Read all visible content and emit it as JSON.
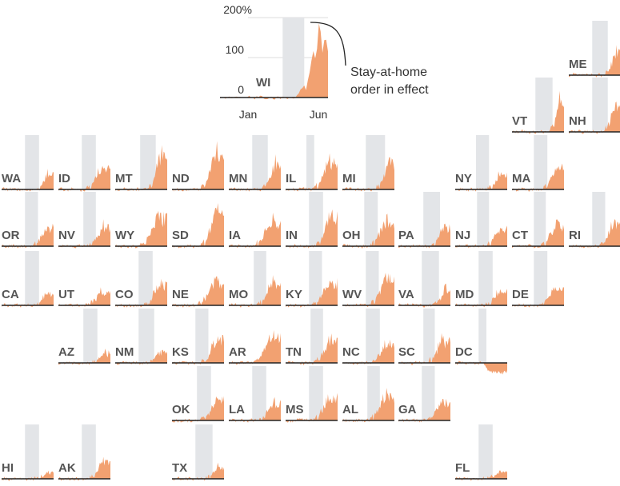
{
  "chart_data": {
    "type": "area",
    "legend_example": {
      "state": "WI",
      "y_ticks": [
        "200%",
        "100",
        "0"
      ],
      "x_ticks": [
        "Jan",
        "Jun"
      ],
      "annotation": [
        "Stay-at-home",
        "order in effect"
      ]
    },
    "x_range": [
      "Jan",
      "Jun"
    ],
    "ylim": [
      -40,
      200
    ],
    "colors": {
      "area": "#f2a171",
      "stay_at_home": "#e3e5e8",
      "baseline": "#222222",
      "label": "#555555"
    },
    "states": [
      {
        "abbr": "WI",
        "shade": [
          0.58,
          0.78
        ],
        "rise": 0.78,
        "peak": 185,
        "neg": false
      },
      {
        "abbr": "ME",
        "shade": [
          0.45,
          0.75
        ],
        "rise": 0.75,
        "peak": 70,
        "neg": false
      },
      {
        "abbr": "VT",
        "shade": [
          0.45,
          0.78
        ],
        "rise": 0.78,
        "peak": 95,
        "neg": false
      },
      {
        "abbr": "NH",
        "shade": [
          0.45,
          0.75
        ],
        "rise": 0.72,
        "peak": 75,
        "neg": false
      },
      {
        "abbr": "WA",
        "shade": [
          0.45,
          0.72
        ],
        "rise": 0.72,
        "peak": 45,
        "neg": false
      },
      {
        "abbr": "ID",
        "shade": [
          0.45,
          0.72
        ],
        "rise": 0.6,
        "peak": 65,
        "neg": false
      },
      {
        "abbr": "MT",
        "shade": [
          0.48,
          0.78
        ],
        "rise": 0.68,
        "peak": 95,
        "neg": false
      },
      {
        "abbr": "ND",
        "shade": null,
        "rise": 0.62,
        "peak": 110,
        "neg": false
      },
      {
        "abbr": "MN",
        "shade": [
          0.45,
          0.75
        ],
        "rise": 0.7,
        "peak": 80,
        "neg": false
      },
      {
        "abbr": "IL",
        "shade": [
          0.4,
          0.55
        ],
        "rise": 0.6,
        "peak": 80,
        "neg": false
      },
      {
        "abbr": "MI",
        "shade": [
          0.45,
          0.82
        ],
        "rise": 0.7,
        "peak": 80,
        "neg": false
      },
      {
        "abbr": "NY",
        "shade": [
          0.4,
          0.65
        ],
        "rise": 0.68,
        "peak": 50,
        "neg": false
      },
      {
        "abbr": "MA",
        "shade": [
          0.42,
          0.68
        ],
        "rise": 0.66,
        "peak": 70,
        "neg": false
      },
      {
        "abbr": "OR",
        "shade": [
          0.45,
          0.7
        ],
        "rise": 0.66,
        "peak": 55,
        "neg": false
      },
      {
        "abbr": "NV",
        "shade": [
          0.48,
          0.72
        ],
        "rise": 0.62,
        "peak": 60,
        "neg": false
      },
      {
        "abbr": "WY",
        "shade": null,
        "rise": 0.55,
        "peak": 85,
        "neg": false
      },
      {
        "abbr": "SD",
        "shade": null,
        "rise": 0.62,
        "peak": 95,
        "neg": false
      },
      {
        "abbr": "IA",
        "shade": null,
        "rise": 0.55,
        "peak": 75,
        "neg": false
      },
      {
        "abbr": "IN",
        "shade": [
          0.45,
          0.72
        ],
        "rise": 0.65,
        "peak": 95,
        "neg": false
      },
      {
        "abbr": "OH",
        "shade": [
          0.42,
          0.68
        ],
        "rise": 0.6,
        "peak": 75,
        "neg": false
      },
      {
        "abbr": "PA",
        "shade": [
          0.48,
          0.8
        ],
        "rise": 0.68,
        "peak": 55,
        "neg": false
      },
      {
        "abbr": "NJ",
        "shade": [
          0.42,
          0.65
        ],
        "rise": 0.65,
        "peak": 55,
        "neg": false
      },
      {
        "abbr": "CT",
        "shade": [
          0.42,
          0.65
        ],
        "rise": 0.62,
        "peak": 65,
        "neg": false
      },
      {
        "abbr": "RI",
        "shade": [
          0.45,
          0.7
        ],
        "rise": 0.65,
        "peak": 70,
        "neg": false
      },
      {
        "abbr": "CA",
        "shade": [
          0.45,
          0.72
        ],
        "rise": 0.7,
        "peak": 40,
        "neg": false
      },
      {
        "abbr": "UT",
        "shade": null,
        "rise": 0.58,
        "peak": 40,
        "neg": false
      },
      {
        "abbr": "CO",
        "shade": [
          0.45,
          0.72
        ],
        "rise": 0.62,
        "peak": 65,
        "neg": false
      },
      {
        "abbr": "NE",
        "shade": null,
        "rise": 0.55,
        "peak": 70,
        "neg": false
      },
      {
        "abbr": "MO",
        "shade": [
          0.48,
          0.72
        ],
        "rise": 0.62,
        "peak": 70,
        "neg": false
      },
      {
        "abbr": "KY",
        "shade": [
          0.45,
          0.7
        ],
        "rise": 0.58,
        "peak": 70,
        "neg": false
      },
      {
        "abbr": "WV",
        "shade": [
          0.45,
          0.7
        ],
        "rise": 0.6,
        "peak": 80,
        "neg": false
      },
      {
        "abbr": "VA",
        "shade": [
          0.45,
          0.78
        ],
        "rise": 0.72,
        "peak": 45,
        "neg": false
      },
      {
        "abbr": "MD",
        "shade": [
          0.45,
          0.72
        ],
        "rise": 0.65,
        "peak": 45,
        "neg": false
      },
      {
        "abbr": "DE",
        "shade": [
          0.42,
          0.68
        ],
        "rise": 0.6,
        "peak": 55,
        "neg": false
      },
      {
        "abbr": "AZ",
        "shade": [
          0.48,
          0.75
        ],
        "rise": 0.7,
        "peak": 30,
        "neg": false
      },
      {
        "abbr": "NM",
        "shade": [
          0.45,
          0.75
        ],
        "rise": 0.7,
        "peak": 35,
        "neg": false
      },
      {
        "abbr": "KS",
        "shade": [
          0.45,
          0.7
        ],
        "rise": 0.62,
        "peak": 70,
        "neg": false
      },
      {
        "abbr": "AR",
        "shade": null,
        "rise": 0.55,
        "peak": 80,
        "neg": false
      },
      {
        "abbr": "TN",
        "shade": [
          0.48,
          0.72
        ],
        "rise": 0.62,
        "peak": 70,
        "neg": false
      },
      {
        "abbr": "NC",
        "shade": [
          0.45,
          0.72
        ],
        "rise": 0.62,
        "peak": 60,
        "neg": false
      },
      {
        "abbr": "SC",
        "shade": [
          0.48,
          0.7
        ],
        "rise": 0.62,
        "peak": 70,
        "neg": false
      },
      {
        "abbr": "DC",
        "shade": [
          0.45,
          0.6
        ],
        "rise": 0.6,
        "peak": 25,
        "neg": true
      },
      {
        "abbr": "OK",
        "shade": [
          0.48,
          0.75
        ],
        "rise": 0.62,
        "peak": 60,
        "neg": false
      },
      {
        "abbr": "LA",
        "shade": [
          0.45,
          0.72
        ],
        "rise": 0.62,
        "peak": 50,
        "neg": false
      },
      {
        "abbr": "MS",
        "shade": [
          0.45,
          0.72
        ],
        "rise": 0.6,
        "peak": 75,
        "neg": false
      },
      {
        "abbr": "AL",
        "shade": [
          0.48,
          0.72
        ],
        "rise": 0.58,
        "peak": 75,
        "neg": false
      },
      {
        "abbr": "GA",
        "shade": [
          0.45,
          0.7
        ],
        "rise": 0.6,
        "peak": 55,
        "neg": false
      },
      {
        "abbr": "HI",
        "shade": [
          0.45,
          0.72
        ],
        "rise": 0.7,
        "peak": 20,
        "neg": false
      },
      {
        "abbr": "AK",
        "shade": [
          0.45,
          0.72
        ],
        "rise": 0.65,
        "peak": 55,
        "neg": false
      },
      {
        "abbr": "TX",
        "shade": [
          0.45,
          0.78
        ],
        "rise": 0.72,
        "peak": 35,
        "neg": false
      },
      {
        "abbr": "FL",
        "shade": [
          0.45,
          0.72
        ],
        "rise": 0.6,
        "peak": 20,
        "neg": false
      }
    ]
  }
}
